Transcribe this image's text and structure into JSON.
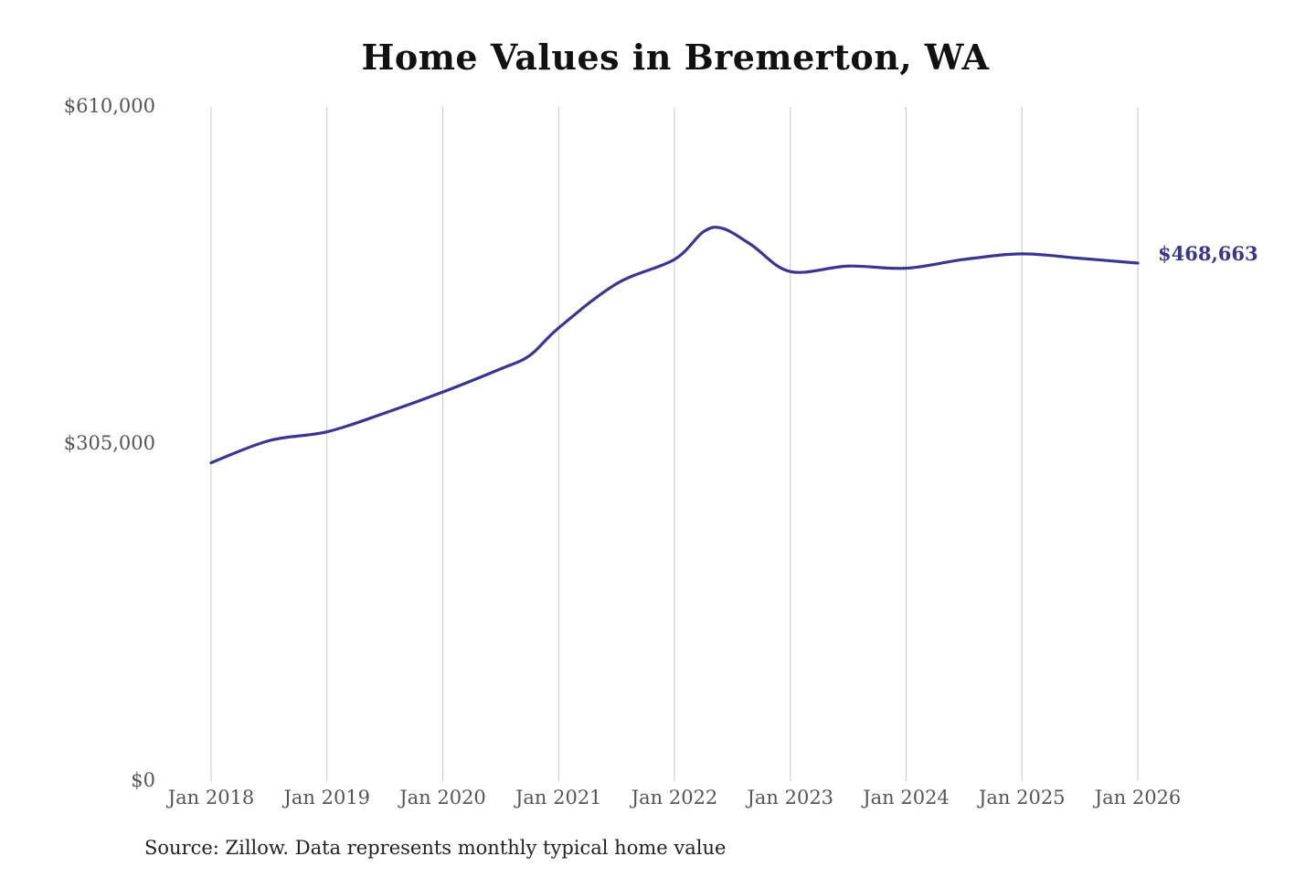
{
  "chart_data": {
    "type": "line",
    "title": "Home Values in Bremerton, WA",
    "xlabel": "",
    "ylabel": "",
    "ylim": [
      0,
      610000
    ],
    "yticks": [
      {
        "value": 0,
        "label": "$0"
      },
      {
        "value": 305000,
        "label": "$305,000"
      },
      {
        "value": 610000,
        "label": "$610,000"
      }
    ],
    "xticks": [
      {
        "value": 2018,
        "label": "Jan 2018"
      },
      {
        "value": 2019,
        "label": "Jan 2019"
      },
      {
        "value": 2020,
        "label": "Jan 2020"
      },
      {
        "value": 2021,
        "label": "Jan 2021"
      },
      {
        "value": 2022,
        "label": "Jan 2022"
      },
      {
        "value": 2023,
        "label": "Jan 2023"
      },
      {
        "value": 2024,
        "label": "Jan 2024"
      },
      {
        "value": 2025,
        "label": "Jan 2025"
      },
      {
        "value": 2026,
        "label": "Jan 2026"
      }
    ],
    "xlim": [
      2018,
      2026
    ],
    "grid": {
      "vertical": true,
      "horizontal": false
    },
    "series": [
      {
        "color": "#3a3590",
        "x": [
          "Jan 2018",
          "Jul 2018",
          "Jan 2019",
          "Jul 2019",
          "Jan 2020",
          "Jul 2020",
          "Oct 2020",
          "Jan 2021",
          "Jul 2021",
          "Jan 2022",
          "Apr 2022",
          "Jun 2022",
          "Sep 2022",
          "Jan 2023",
          "Jul 2023",
          "Jan 2024",
          "Jul 2024",
          "Jan 2025",
          "Jul 2025",
          "Jan 2026"
        ],
        "values": [
          288000,
          308000,
          316000,
          333000,
          352000,
          373000,
          385000,
          410000,
          450000,
          472000,
          497000,
          500000,
          485000,
          461000,
          466000,
          464000,
          472000,
          477000,
          473000,
          468663
        ]
      }
    ],
    "end_label": "$468,663",
    "source": "Source: Zillow. Data represents monthly typical home value"
  }
}
